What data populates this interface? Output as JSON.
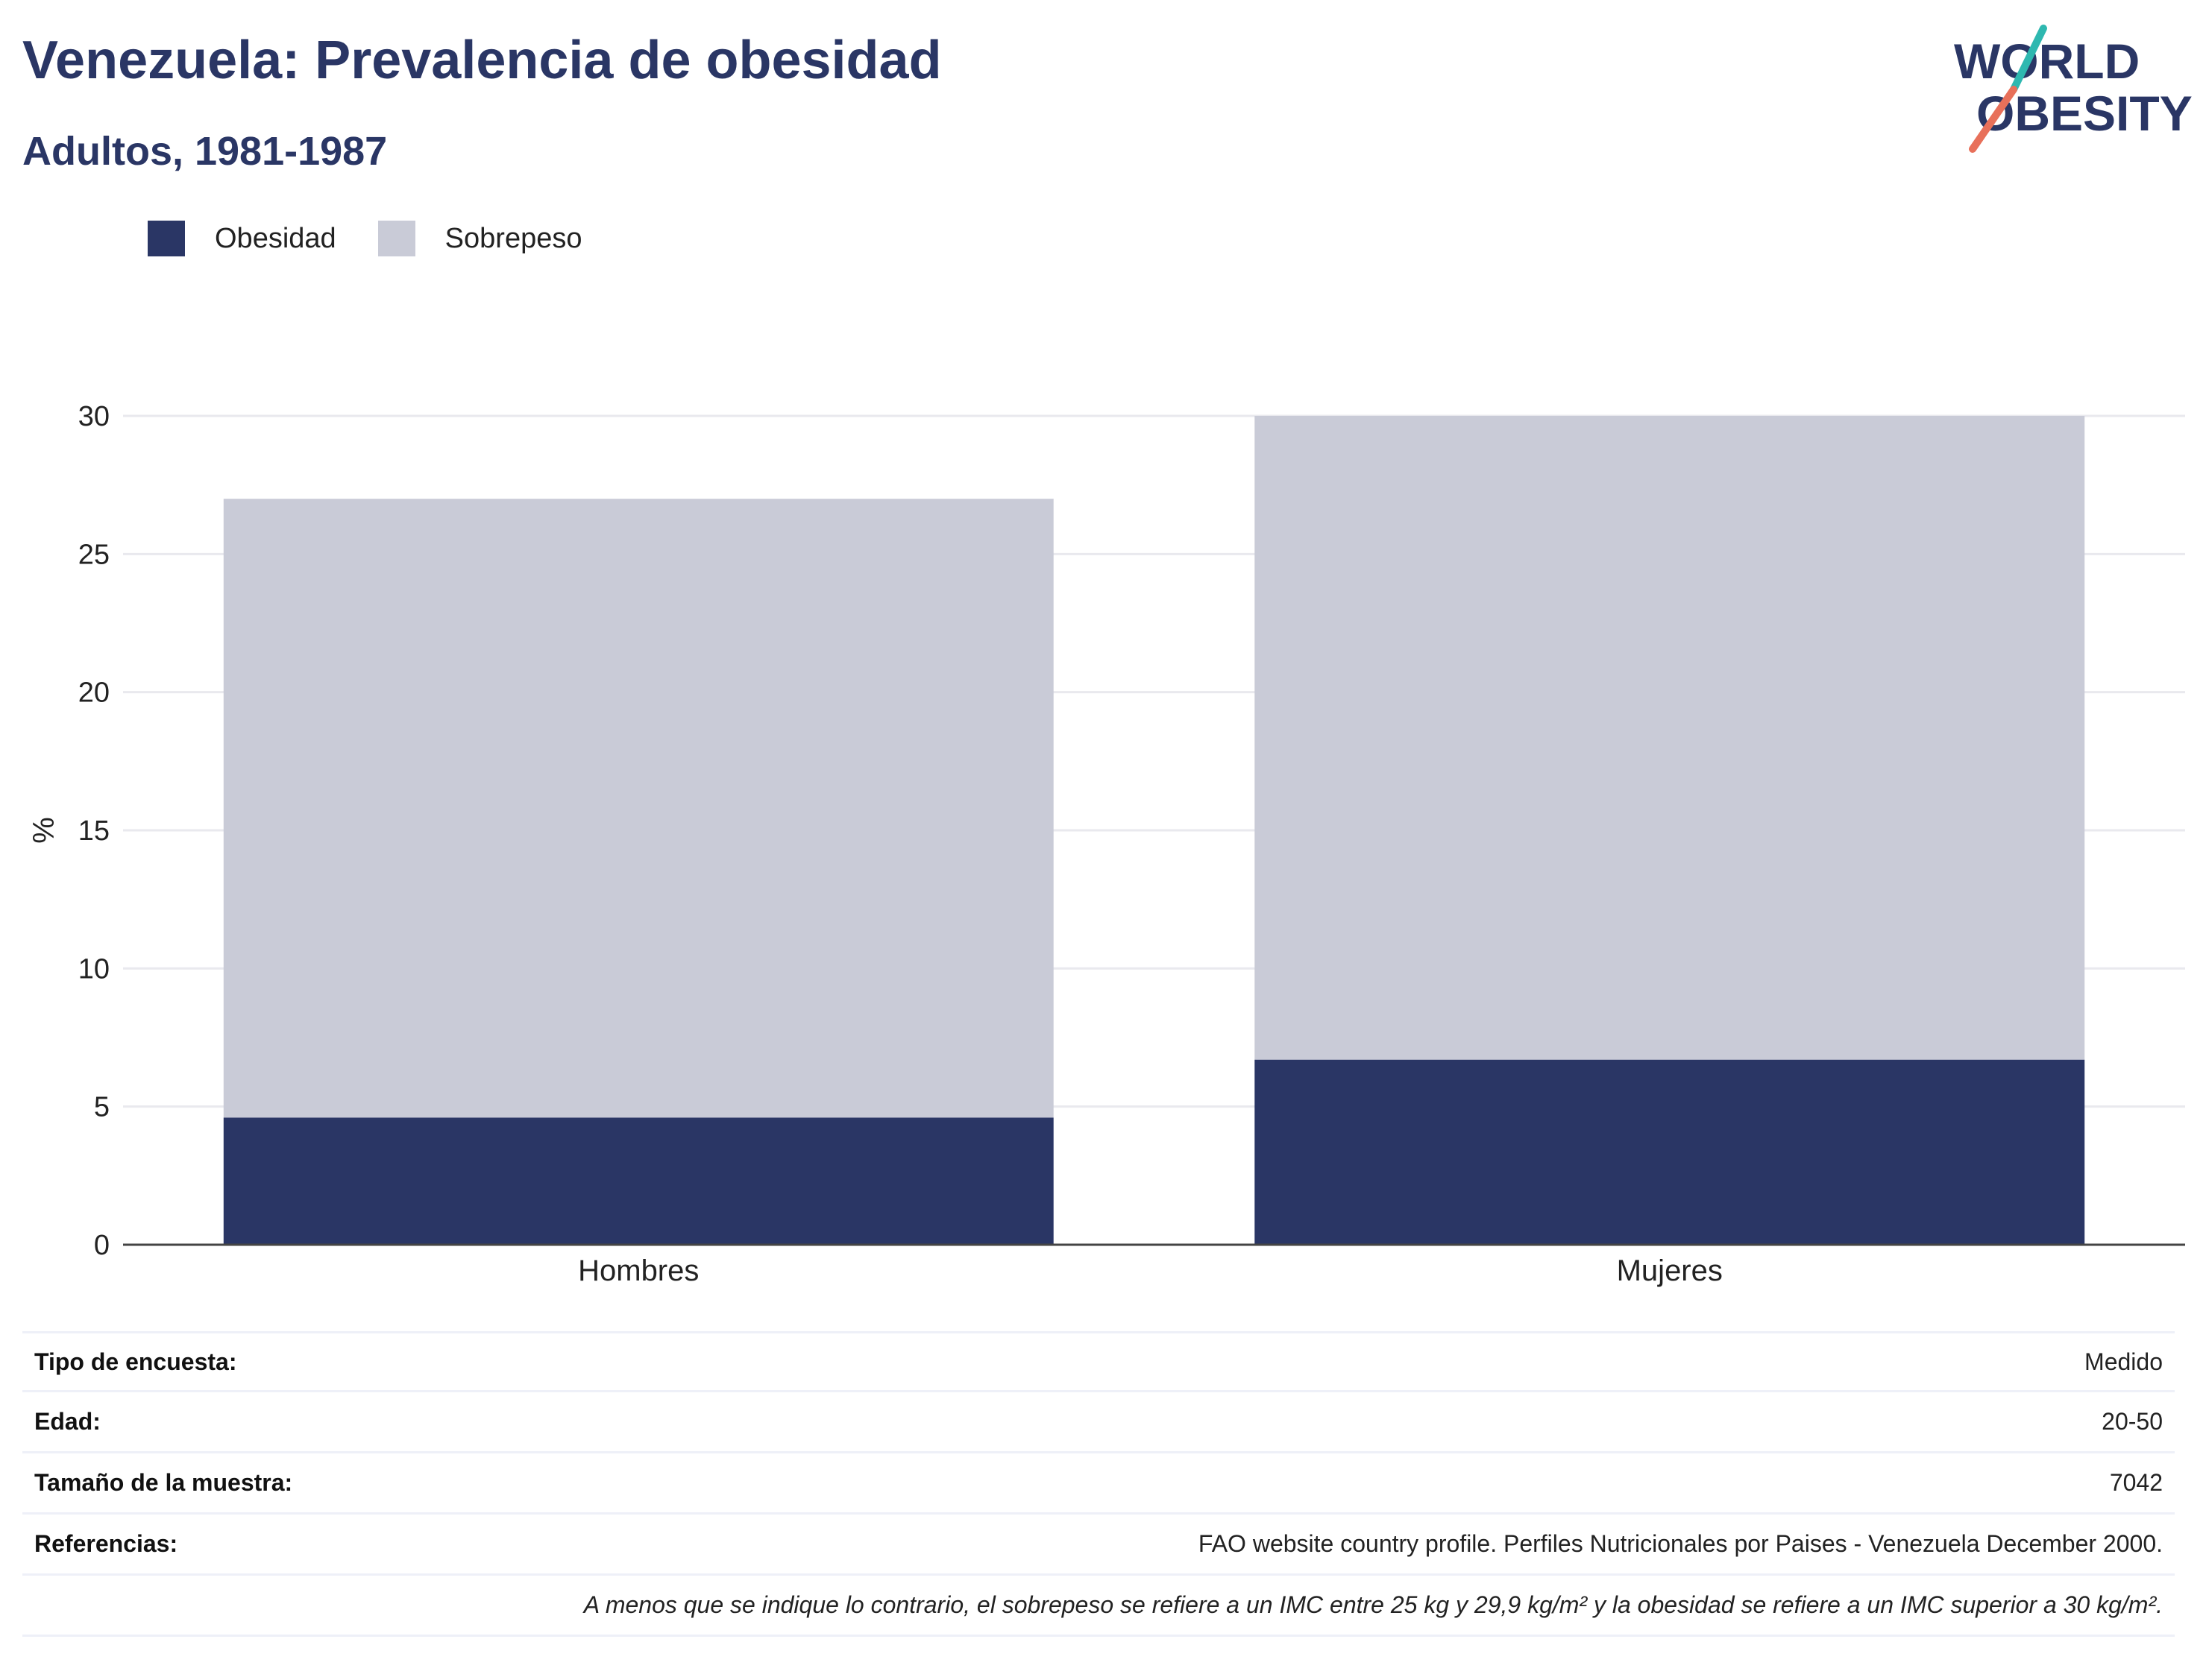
{
  "header": {
    "title": "Venezuela: Prevalencia de obesidad",
    "subtitle": "Adultos, 1981-1987"
  },
  "logo": {
    "line1": "WORLD",
    "line2": "OBESITY"
  },
  "legend": [
    {
      "label": "Obesidad",
      "color": "#2a3665"
    },
    {
      "label": "Sobrepeso",
      "color": "#c9cbd7"
    }
  ],
  "chart_data": {
    "type": "bar",
    "stacked": true,
    "categories": [
      "Hombres",
      "Mujeres"
    ],
    "series": [
      {
        "name": "Obesidad",
        "values": [
          4.6,
          6.7
        ],
        "color": "#2a3665"
      },
      {
        "name": "Sobrepeso",
        "values": [
          22.4,
          23.3
        ],
        "color": "#c9cbd7"
      }
    ],
    "title": "Venezuela: Prevalencia de obesidad",
    "subtitle": "Adultos, 1981-1987",
    "xlabel": "",
    "ylabel": "%",
    "ylim": [
      0,
      30
    ],
    "yticks": [
      0,
      5,
      10,
      15,
      20,
      25,
      30
    ],
    "grid": true,
    "legend_position": "top-left"
  },
  "info": {
    "rows": [
      {
        "label": "Tipo de encuesta:",
        "value": "Medido"
      },
      {
        "label": "Edad:",
        "value": "20-50"
      },
      {
        "label": "Tamaño de la muestra:",
        "value": "7042"
      },
      {
        "label": "Referencias:",
        "value": "FAO website country profile. Perfiles Nutricionales por Paises - Venezuela December 2000."
      }
    ],
    "note": "A menos que se indique lo contrario, el sobrepeso se refiere a un IMC entre 25 kg y 29,9 kg/m² y la obesidad se refiere a un IMC superior a 30 kg/m²."
  }
}
